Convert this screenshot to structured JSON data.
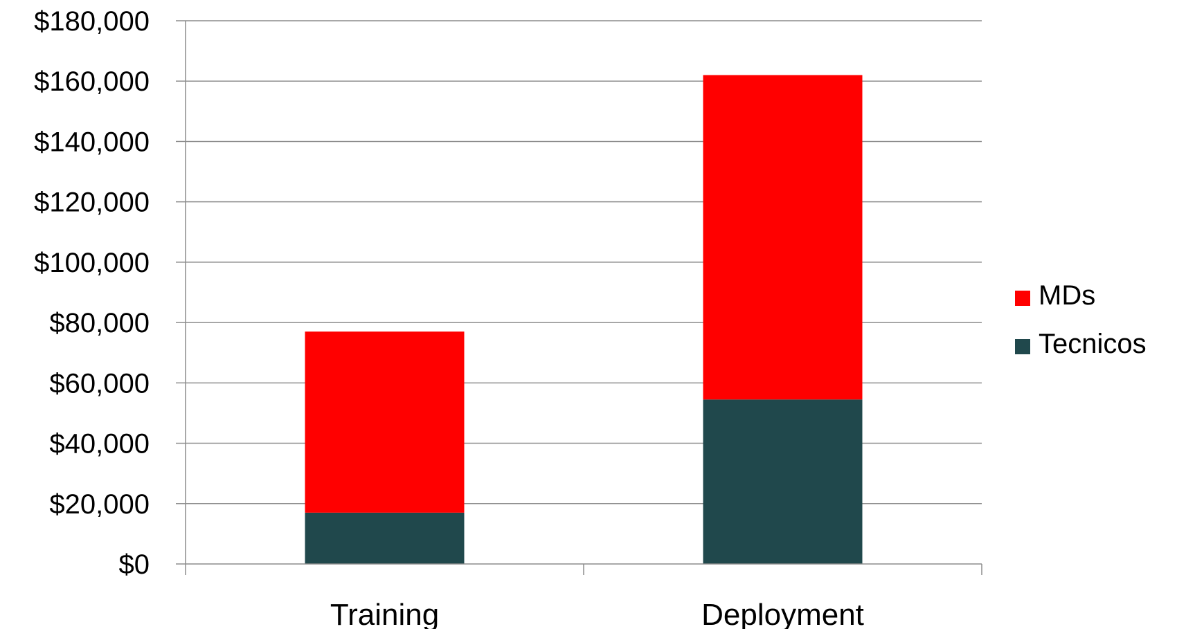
{
  "chart_data": {
    "type": "bar",
    "stacked": true,
    "categories": [
      "Training",
      "Deployment"
    ],
    "series": [
      {
        "name": "Tecnicos",
        "values": [
          17000,
          54500
        ],
        "color": "#20484C"
      },
      {
        "name": "MDs",
        "values": [
          60000,
          107500
        ],
        "color": "#FF0000"
      }
    ],
    "ylim": [
      0,
      180000
    ],
    "ytick_step": 20000,
    "ytick_labels": [
      "$0",
      "$20,000",
      "$40,000",
      "$60,000",
      "$80,000",
      "$100,000",
      "$120,000",
      "$140,000",
      "$160,000",
      "$180,000"
    ],
    "title": "",
    "xlabel": "",
    "ylabel": "",
    "grid": true,
    "legend_position": "right",
    "legend_order": [
      "MDs",
      "Tecnicos"
    ]
  }
}
